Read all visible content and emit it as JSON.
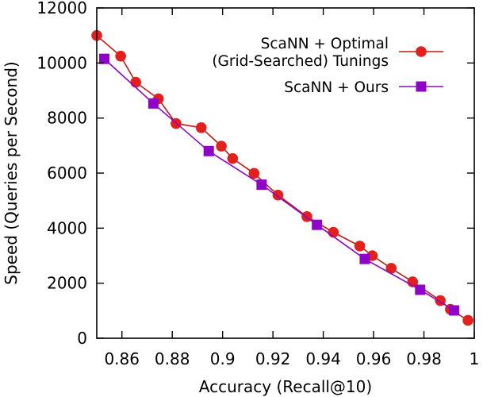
{
  "chart_data": {
    "type": "line",
    "title": "",
    "xlabel": "Accuracy (Recall@10)",
    "ylabel": "Speed (Queries per Second)",
    "xlim": [
      0.85,
      1.0
    ],
    "ylim": [
      0,
      12000
    ],
    "xticks": [
      0.86,
      0.88,
      0.9,
      0.92,
      0.94,
      0.96,
      0.98,
      1.0
    ],
    "xtick_labels": [
      "0.86",
      "0.88",
      "0.9",
      "0.92",
      "0.94",
      "0.96",
      "0.98",
      "1"
    ],
    "yticks": [
      0,
      2000,
      4000,
      6000,
      8000,
      10000,
      12000
    ],
    "ytick_labels": [
      "0",
      "2000",
      "4000",
      "6000",
      "8000",
      "10000",
      "12000"
    ],
    "grid": false,
    "legend_position": "top-right",
    "series": [
      {
        "name": "ScaNN + Optimal (Grid-Searched) Tunings",
        "legend_lines": [
          "ScaNN + Optimal",
          "(Grid-Searched) Tunings"
        ],
        "color": "#e3211c",
        "line_color": "#c21a16",
        "marker": "circle",
        "x": [
          0.85,
          0.8595,
          0.8655,
          0.8745,
          0.8815,
          0.8915,
          0.8995,
          0.904,
          0.9125,
          0.922,
          0.9335,
          0.944,
          0.9545,
          0.9595,
          0.967,
          0.9755,
          0.9865,
          0.9905,
          0.9975
        ],
        "y": [
          11000,
          10250,
          9300,
          8700,
          7800,
          7650,
          6980,
          6530,
          5990,
          5200,
          4420,
          3850,
          3350,
          3000,
          2540,
          2050,
          1370,
          1050,
          650
        ]
      },
      {
        "name": "ScaNN + Ours",
        "legend_lines": [
          "ScaNN + Ours"
        ],
        "color": "#8e05c8",
        "line_color": "#8e05c8",
        "marker": "square",
        "x": [
          0.853,
          0.8725,
          0.8945,
          0.9155,
          0.9375,
          0.9565,
          0.9785,
          0.992
        ],
        "y": [
          10150,
          8530,
          6800,
          5580,
          4120,
          2880,
          1760,
          1010
        ]
      }
    ]
  }
}
